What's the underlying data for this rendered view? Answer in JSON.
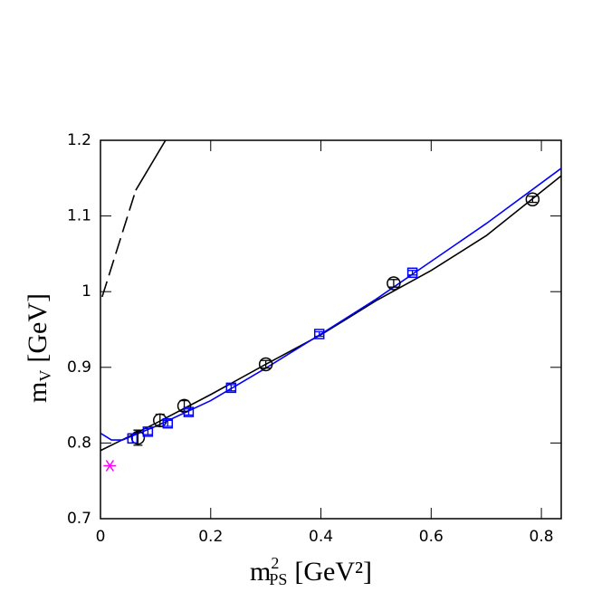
{
  "chart_data": {
    "type": "line",
    "x_label": {
      "text": "m",
      "sup": "2",
      "sub": "PS",
      "unit": "[GeV²]"
    },
    "y_label": {
      "text": "m",
      "sub": "V",
      "unit": "[GeV]"
    },
    "xlim": [
      0,
      0.836
    ],
    "ylim": [
      0.7,
      1.2
    ],
    "xticks": [
      0,
      0.2,
      0.4,
      0.6,
      0.8
    ],
    "yticks": [
      0.7,
      0.8,
      0.9,
      1,
      1.1,
      1.2
    ],
    "series": [
      {
        "color": "#000000",
        "x": [
          0,
          0.1,
          0.2,
          0.3,
          0.4,
          0.5,
          0.6,
          0.7,
          0.836
        ],
        "values": [
          0.79,
          0.826,
          0.864,
          0.904,
          0.943,
          0.988,
          1.028,
          1.074,
          1.153
        ]
      },
      {
        "color": "#0000ff",
        "x": [
          0,
          0.02,
          0.04,
          0.1,
          0.2,
          0.3,
          0.4,
          0.5,
          0.6,
          0.7,
          0.836
        ],
        "values": [
          0.813,
          0.804,
          0.804,
          0.822,
          0.856,
          0.899,
          0.944,
          0.99,
          1.04,
          1.09,
          1.163
        ]
      },
      {
        "color": "#000000",
        "dash": true,
        "x": [
          0.003,
          0.064
        ],
        "values": [
          0.993,
          1.134
        ]
      },
      {
        "color": "#000000",
        "x": [
          0.064,
          0.118
        ],
        "values": [
          1.134,
          1.2
        ]
      },
      {
        "color": "#000000",
        "marker": "circle",
        "x": [
          0.068,
          0.108,
          0.152,
          0.3,
          0.532,
          0.784
        ],
        "values": [
          0.807,
          0.83,
          0.849,
          0.904,
          1.011,
          1.122
        ],
        "errors": [
          0.01,
          0.008,
          0.007,
          0.005,
          0.005,
          0.004
        ]
      },
      {
        "color": "#0000ff",
        "marker": "square",
        "x": [
          0.058,
          0.086,
          0.122,
          0.16,
          0.237,
          0.397,
          0.566
        ],
        "values": [
          0.806,
          0.815,
          0.826,
          0.841,
          0.873,
          0.944,
          1.025
        ],
        "errors": [
          0.006,
          0.004,
          0.004,
          0.004,
          0.004,
          0.003,
          0.003
        ]
      },
      {
        "color": "#ff00ff",
        "marker": "star",
        "x": [
          0.017
        ],
        "values": [
          0.77
        ]
      }
    ]
  }
}
